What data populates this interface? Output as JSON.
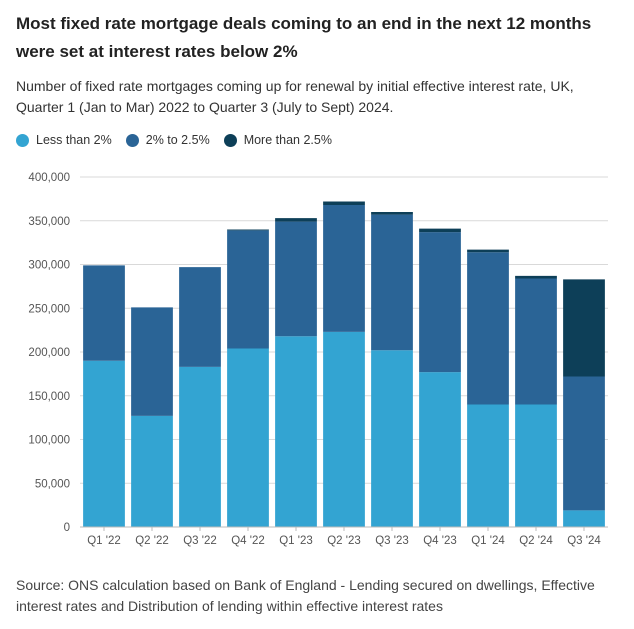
{
  "title": "Most fixed rate mortgage deals coming to an end in the next 12 months were set at interest rates below 2%",
  "subtitle": "Number of fixed rate mortgages coming up for renewal by initial effective interest rate, UK, Quarter 1 (Jan to Mar) 2022 to Quarter 3 (July to Sept) 2024.",
  "source": "Source: ONS calculation based on Bank of England - Lending secured on dwellings, Effective interest rates and Distribution of lending within effective interest rates",
  "colors": {
    "less_than_2": "#33a4d2",
    "two_to_2_5": "#2a6496",
    "more_than_2_5": "#0d3f58",
    "grid": "#d9d9d9",
    "axis_text": "#555555"
  },
  "chart_data": {
    "type": "bar",
    "stacked": true,
    "categories": [
      "Q1 '22",
      "Q2 '22",
      "Q3 '22",
      "Q4 '22",
      "Q1 '23",
      "Q2 '23",
      "Q3 '23",
      "Q4 '23",
      "Q1 '24",
      "Q2 '24",
      "Q3 '24"
    ],
    "series": [
      {
        "name": "Less than 2%",
        "color": "#33a4d2",
        "values": [
          190000,
          127000,
          183000,
          204000,
          218000,
          223000,
          202000,
          177000,
          140000,
          140000,
          19000
        ]
      },
      {
        "name": "2% to 2.5%",
        "color": "#2a6496",
        "values": [
          109000,
          124000,
          114000,
          135000,
          131000,
          145000,
          155000,
          160000,
          174000,
          144000,
          153000
        ]
      },
      {
        "name": "More than 2.5%",
        "color": "#0d3f58",
        "values": [
          0,
          0,
          0,
          1000,
          4000,
          4000,
          3000,
          4000,
          3000,
          3000,
          111000
        ]
      }
    ],
    "ylim": [
      0,
      400000
    ],
    "yticks": [
      0,
      50000,
      100000,
      150000,
      200000,
      250000,
      300000,
      350000,
      400000
    ],
    "ytick_labels": [
      "0",
      "50,000",
      "100,000",
      "150,000",
      "200,000",
      "250,000",
      "300,000",
      "350,000",
      "400,000"
    ],
    "grid": true,
    "legend": "top-left",
    "xlabel": "",
    "ylabel": ""
  }
}
